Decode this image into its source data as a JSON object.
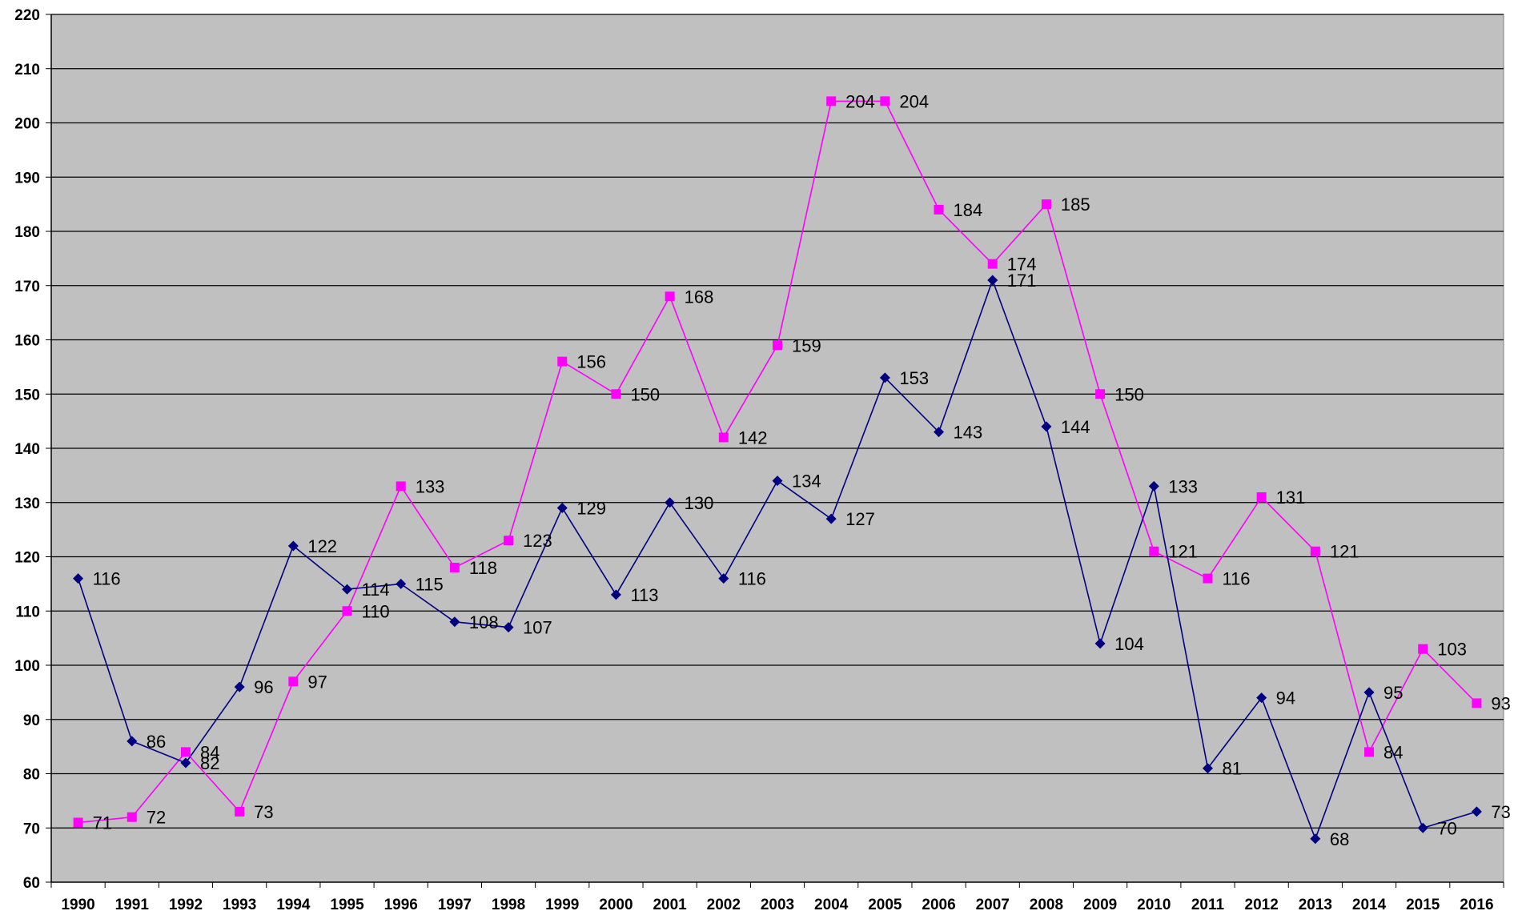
{
  "chart_data": {
    "type": "line",
    "title": "",
    "xlabel": "",
    "ylabel": "",
    "ylim": [
      60,
      220
    ],
    "y_ticks": [
      "60",
      "70",
      "80",
      "90",
      "100",
      "110",
      "120",
      "130",
      "140",
      "150",
      "160",
      "170",
      "180",
      "190",
      "200",
      "210",
      "220"
    ],
    "grid": true,
    "legend": "none",
    "plot_background": "#C0C0C0",
    "categories": [
      "1990",
      "1991",
      "1992",
      "1993",
      "1994",
      "1995",
      "1996",
      "1997",
      "1998",
      "1999",
      "2000",
      "2001",
      "2002",
      "2003",
      "2004",
      "2005",
      "2006",
      "2007",
      "2008",
      "2009",
      "2010",
      "2011",
      "2012",
      "2013",
      "2014",
      "2015",
      "2016"
    ],
    "series": [
      {
        "color": "#000080",
        "marker": "diamond",
        "values": [
          116,
          86,
          82,
          96,
          122,
          114,
          115,
          108,
          107,
          129,
          113,
          130,
          116,
          134,
          127,
          153,
          143,
          171,
          144,
          104,
          133,
          81,
          94,
          68,
          95,
          70,
          73
        ],
        "labels": [
          "116",
          "86",
          "82",
          "96",
          "122",
          "114",
          "115",
          "108",
          "107",
          "129",
          "113",
          "130",
          "116",
          "134",
          "127",
          "153",
          "143",
          "171",
          "144",
          "104",
          "133",
          "81",
          "94",
          "68",
          "95",
          "70",
          "73"
        ]
      },
      {
        "color": "#FF00FF",
        "marker": "square",
        "values": [
          71,
          72,
          84,
          73,
          97,
          110,
          133,
          118,
          123,
          156,
          150,
          168,
          142,
          159,
          204,
          204,
          184,
          174,
          185,
          150,
          121,
          116,
          131,
          121,
          84,
          103,
          93
        ],
        "labels": [
          "71",
          "72",
          "84",
          "73",
          "97",
          "110",
          "133",
          "118",
          "123",
          "156",
          "150",
          "168",
          "142",
          "159",
          "204",
          "204",
          "184",
          "174",
          "185",
          "150",
          "121",
          "116",
          "131",
          "121",
          "84",
          "103",
          "93"
        ]
      }
    ]
  }
}
